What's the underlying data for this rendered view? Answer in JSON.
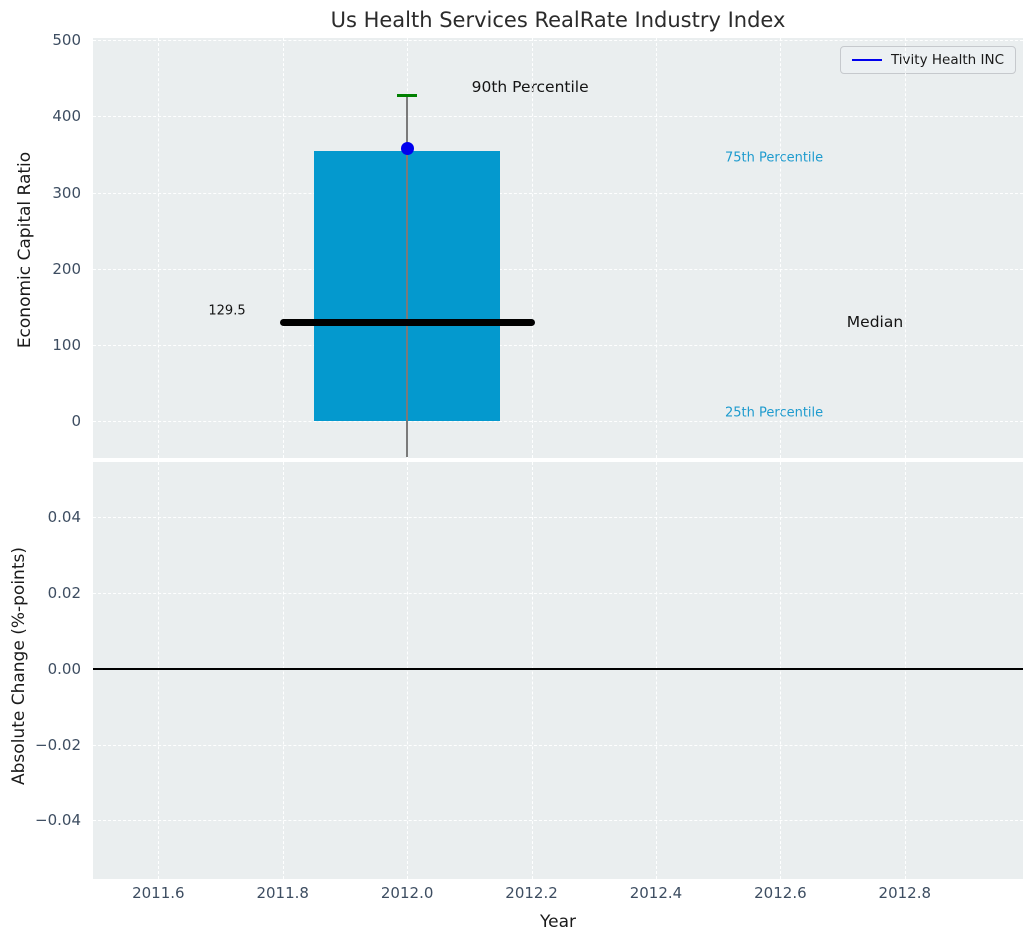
{
  "title": "Us Health Services RealRate Industry Index",
  "legend": {
    "label": "Tivity Health INC"
  },
  "top_axis": {
    "ylabel": "Economic Capital Ratio",
    "annotations": {
      "p90_label": "90th Percentile",
      "p75_label": "75th Percentile",
      "median_label": "Median",
      "p25_label": "25th Percentile",
      "median_value_label": "129.5"
    }
  },
  "bottom_axis": {
    "ylabel": "Absolute Change (%-points)",
    "xlabel": "Year"
  },
  "colors": {
    "axes_bg": "#eaeeef",
    "grid": "#ffffff",
    "box_fill": "#0499ce",
    "whisker": "#7a7a7a",
    "cap": "#008000",
    "dot": "#0000ee",
    "legend_line": "#0000ee",
    "median_line": "#000000",
    "zero_line": "#000000",
    "percentile_text": "#1e9bce",
    "tick_text": "#3d4d61",
    "title_text": "#2b2b2b"
  },
  "chart_data": [
    {
      "type": "box",
      "title": "Us Health Services RealRate Industry Index",
      "ylabel": "Economic Capital Ratio",
      "box": {
        "x": 2012,
        "q1": 0,
        "median": 129.5,
        "q3": 355,
        "p90": 427,
        "whisker_low": -48,
        "box_half_width": 0.15,
        "median_half_width": 0.205,
        "cap_half_width": 0.016
      },
      "company_point": {
        "name": "Tivity Health INC",
        "x": 2012,
        "y": 358
      },
      "xlim": [
        2011.495,
        2012.99
      ],
      "ylim": [
        -48.5,
        503
      ],
      "yticks": [
        0,
        100,
        200,
        300,
        400,
        500
      ],
      "ytick_labels": [
        "0",
        "100",
        "200",
        "300",
        "400",
        "500"
      ],
      "grid": true,
      "legend": [
        "Tivity Health INC"
      ],
      "legend_position": "upper right"
    },
    {
      "type": "line",
      "ylabel": "Absolute Change (%-points)",
      "xlabel": "Year",
      "series": [
        {
          "name": "zero-change-baseline",
          "y": 0.0
        }
      ],
      "xlim": [
        2011.495,
        2012.99
      ],
      "ylim": [
        -0.0555,
        0.0546
      ],
      "xticks": [
        2011.6,
        2011.8,
        2012.0,
        2012.2,
        2012.4,
        2012.6,
        2012.8
      ],
      "xtick_labels": [
        "2011.6",
        "2011.8",
        "2012.0",
        "2012.2",
        "2012.4",
        "2012.6",
        "2012.8"
      ],
      "yticks": [
        0.04,
        0.02,
        0.0,
        -0.02,
        -0.04
      ],
      "ytick_labels": [
        "0.04",
        "0.02",
        "0.00",
        "−0.02",
        "−0.04"
      ],
      "grid": true
    }
  ]
}
